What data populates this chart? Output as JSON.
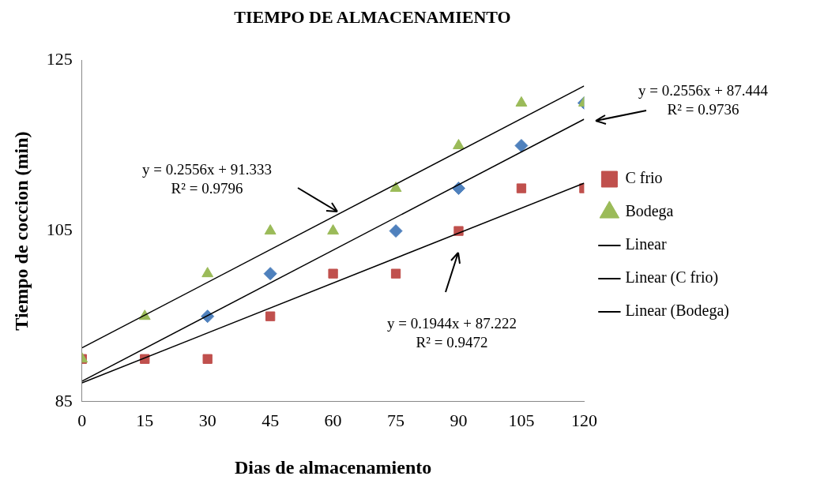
{
  "chart_data": {
    "type": "scatter",
    "title": "TIEMPO DE ALMACENAMIENTO",
    "xlabel": "Dias de almacenamiento",
    "ylabel": "Tiempo de coccion (min)",
    "x": [
      0,
      15,
      30,
      45,
      60,
      75,
      90,
      105,
      120
    ],
    "xlim": [
      0,
      120
    ],
    "xticks": [
      0,
      15,
      30,
      45,
      60,
      75,
      90,
      105,
      120
    ],
    "ylim": [
      85,
      125
    ],
    "yticks": [
      85,
      105,
      125
    ],
    "grid": false,
    "legend": "right",
    "series": [
      {
        "color": "#4f81bd",
        "marker": "diamond",
        "values": [
          null,
          null,
          95,
          100,
          null,
          105,
          110,
          115,
          120
        ]
      },
      {
        "name": "C frio",
        "color": "#c0504d",
        "marker": "square",
        "values": [
          90,
          90,
          90,
          95,
          100,
          100,
          105,
          110,
          110
        ]
      },
      {
        "name": "Bodega",
        "color": "#9bbb59",
        "marker": "triangle",
        "values": [
          90,
          95,
          100,
          105,
          105,
          110,
          115,
          120,
          120
        ]
      },
      {
        "type": "line",
        "name": "Linear",
        "color": "#000000",
        "marker": "none",
        "values": [
          87.4,
          null,
          null,
          null,
          null,
          null,
          null,
          null,
          118.1
        ]
      },
      {
        "type": "line",
        "name": "Linear (C frio)",
        "color": "#000000",
        "marker": "none",
        "values": [
          87.2,
          null,
          null,
          null,
          null,
          null,
          null,
          null,
          110.6
        ]
      },
      {
        "type": "line",
        "name": "Linear (Bodega)",
        "color": "#000000",
        "marker": "none",
        "values": [
          91.3,
          null,
          null,
          null,
          null,
          null,
          null,
          null,
          122.0
        ]
      }
    ],
    "annotations": [
      "y = 0.2556x + 91.333\nR² = 0.9796",
      "y = 0.2556x + 87.444\nR² = 0.9736",
      "y = 0.1944x + 87.222\nR² = 0.9472"
    ]
  }
}
